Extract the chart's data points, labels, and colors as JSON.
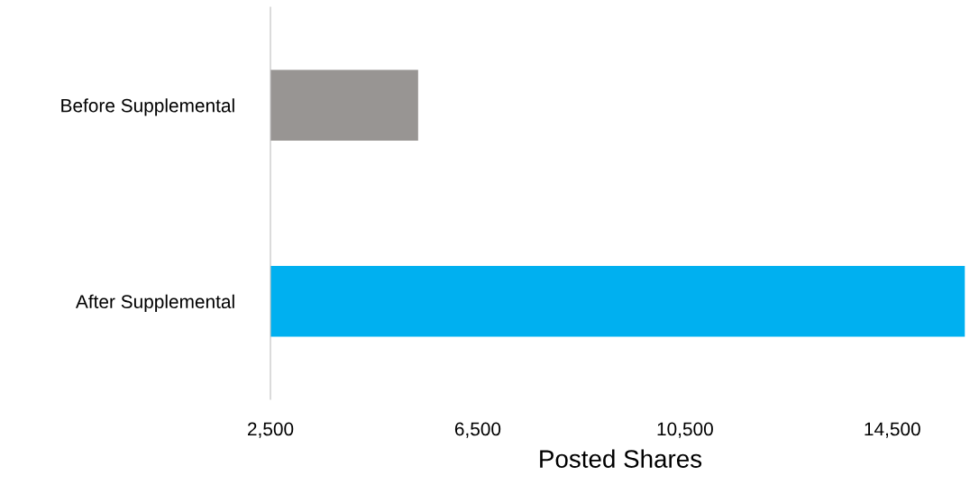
{
  "chart_data": {
    "type": "bar",
    "orientation": "horizontal",
    "xlabel": "Posted Shares",
    "categories": [
      "Before Supplemental",
      "After Supplemental"
    ],
    "values": [
      5350,
      15900
    ],
    "colors": [
      "#989593",
      "#00b0f0"
    ],
    "xlim": [
      2500,
      16000
    ],
    "xticks": [
      {
        "value": 2500,
        "label": "2,500"
      },
      {
        "value": 6500,
        "label": "6,500"
      },
      {
        "value": 10500,
        "label": "10,500"
      },
      {
        "value": 14500,
        "label": "14,500"
      }
    ],
    "grid": false,
    "legend": false
  }
}
